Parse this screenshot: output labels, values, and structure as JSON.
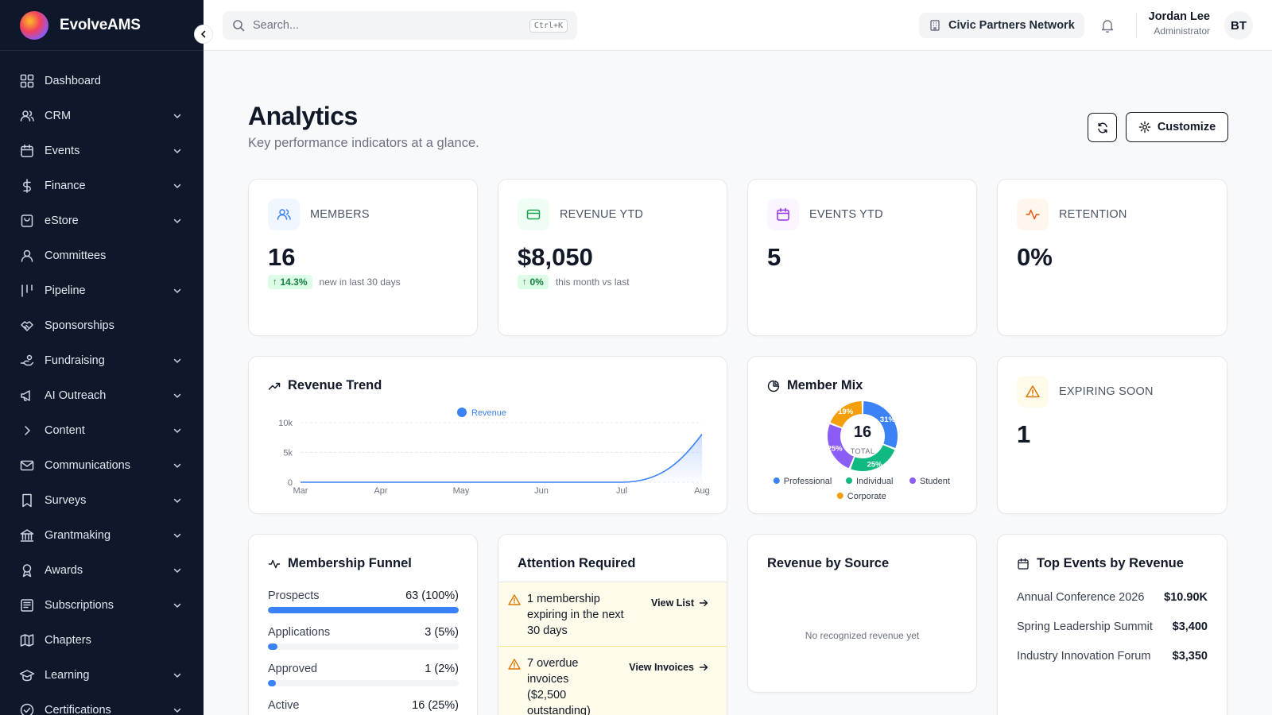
{
  "brand": {
    "name": "EvolveAMS"
  },
  "sidebar": {
    "items": [
      {
        "label": "Dashboard",
        "icon": "dashboard-icon",
        "expandable": false
      },
      {
        "label": "CRM",
        "icon": "users-icon",
        "expandable": true
      },
      {
        "label": "Events",
        "icon": "calendar-icon",
        "expandable": true
      },
      {
        "label": "Finance",
        "icon": "dollar-icon",
        "expandable": true
      },
      {
        "label": "eStore",
        "icon": "bag-icon",
        "expandable": true
      },
      {
        "label": "Committees",
        "icon": "people-icon",
        "expandable": false
      },
      {
        "label": "Pipeline",
        "icon": "pipeline-icon",
        "expandable": true
      },
      {
        "label": "Sponsorships",
        "icon": "handshake-icon",
        "expandable": false
      },
      {
        "label": "Fundraising",
        "icon": "hand-coin-icon",
        "expandable": true
      },
      {
        "label": "AI Outreach",
        "icon": "megaphone-icon",
        "expandable": true
      },
      {
        "label": "Content",
        "icon": "chevron-right-icon",
        "expandable": true
      },
      {
        "label": "Communications",
        "icon": "mail-icon",
        "expandable": true
      },
      {
        "label": "Surveys",
        "icon": "bookmark-icon",
        "expandable": true
      },
      {
        "label": "Grantmaking",
        "icon": "bank-icon",
        "expandable": true
      },
      {
        "label": "Awards",
        "icon": "award-icon",
        "expandable": true
      },
      {
        "label": "Subscriptions",
        "icon": "newspaper-icon",
        "expandable": true
      },
      {
        "label": "Chapters",
        "icon": "map-icon",
        "expandable": false
      },
      {
        "label": "Learning",
        "icon": "graduation-cap-icon",
        "expandable": true
      },
      {
        "label": "Certifications",
        "icon": "badge-check-icon",
        "expandable": true
      }
    ]
  },
  "header": {
    "search_placeholder": "Search...",
    "search_shortcut": "Ctrl+K",
    "org_name": "Civic Partners Network",
    "user_name": "Jordan Lee",
    "user_role": "Administrator",
    "avatar_initials": "BT"
  },
  "page": {
    "title": "Analytics",
    "subtitle": "Key performance indicators at a glance.",
    "customize_label": "Customize"
  },
  "kpis": [
    {
      "label": "MEMBERS",
      "value": "16",
      "delta": "14.3%",
      "delta_text": "new in last 30 days",
      "icon": "users-icon",
      "color": "#3b82f6",
      "bg": "#eff6ff"
    },
    {
      "label": "REVENUE YTD",
      "value": "$8,050",
      "delta": "0%",
      "delta_text": "this month vs last",
      "icon": "credit-card-icon",
      "color": "#16a34a",
      "bg": "#f0fdf4"
    },
    {
      "label": "EVENTS YTD",
      "value": "5",
      "icon": "calendar-icon",
      "color": "#9333ea",
      "bg": "#faf5ff"
    },
    {
      "label": "RETENTION",
      "value": "0%",
      "icon": "activity-icon",
      "color": "#ea580c",
      "bg": "#fff7ed"
    }
  ],
  "revenue_trend": {
    "title": "Revenue Trend",
    "legend": "Revenue"
  },
  "chart_data": [
    {
      "type": "area",
      "title": "Revenue Trend",
      "categories": [
        "Mar",
        "Apr",
        "May",
        "Jun",
        "Jul",
        "Aug"
      ],
      "series": [
        {
          "name": "Revenue",
          "values": [
            0,
            0,
            0,
            0,
            0,
            8050
          ]
        }
      ],
      "ylim": [
        0,
        10000
      ],
      "yticks": [
        "0",
        "5k",
        "10k"
      ],
      "color": "#3b82f6",
      "grid": true,
      "legend": "top-center"
    },
    {
      "type": "pie",
      "title": "Member Mix",
      "center_value": "16",
      "center_label": "TOTAL",
      "categories": [
        "Professional",
        "Individual",
        "Student",
        "Corporate"
      ],
      "values": [
        31,
        25,
        25,
        19
      ],
      "labels": [
        "31%",
        "25%",
        "25%",
        "19%"
      ],
      "colors": [
        "#3b82f6",
        "#10b981",
        "#8b5cf6",
        "#f59e0b"
      ],
      "legend": "bottom"
    }
  ],
  "member_mix": {
    "title": "Member Mix"
  },
  "expiring": {
    "label": "EXPIRING SOON",
    "value": "1",
    "color": "#d97706",
    "bg": "#fffbeb"
  },
  "funnel": {
    "title": "Membership Funnel",
    "rows": [
      {
        "label": "Prospects",
        "value": "63 (100%)",
        "pct": 100
      },
      {
        "label": "Applications",
        "value": "3 (5%)",
        "pct": 5
      },
      {
        "label": "Approved",
        "value": "1 (2%)",
        "pct": 2
      },
      {
        "label": "Active",
        "value": "16 (25%)",
        "pct": 25
      }
    ]
  },
  "attention": {
    "title": "Attention Required",
    "items": [
      {
        "text": "1 membership expiring in the next 30 days",
        "link": "View List"
      },
      {
        "text": "7 overdue invoices ($2,500 outstanding)",
        "link": "View Invoices"
      }
    ]
  },
  "revenue_source": {
    "title": "Revenue by Source",
    "empty_text": "No recognized revenue yet"
  },
  "top_events": {
    "title": "Top Events by Revenue",
    "rows": [
      {
        "name": "Annual Conference 2026",
        "value": "$10.90K"
      },
      {
        "name": "Spring Leadership Summit",
        "value": "$3,400"
      },
      {
        "name": "Industry Innovation Forum",
        "value": "$3,350"
      }
    ]
  }
}
